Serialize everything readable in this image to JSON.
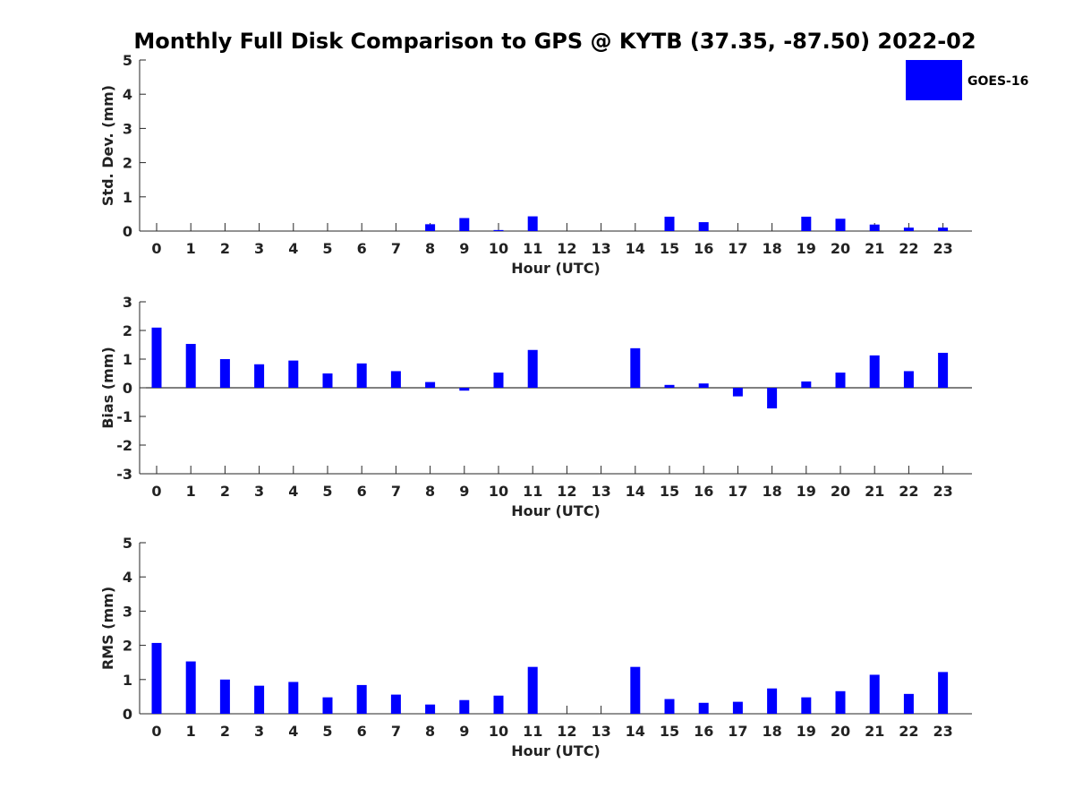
{
  "chart_data": {
    "type": "bar",
    "title": "Monthly Full Disk Comparison to GPS @ KYTB (37.35, -87.50) 2022-02",
    "categories": [
      "0",
      "1",
      "2",
      "3",
      "4",
      "5",
      "6",
      "7",
      "8",
      "9",
      "10",
      "11",
      "12",
      "13",
      "14",
      "15",
      "16",
      "17",
      "18",
      "19",
      "20",
      "21",
      "22",
      "23"
    ],
    "legend": {
      "label": "GOES-16",
      "placement": "top-right"
    },
    "series_color": "#0000ff",
    "panels": [
      {
        "id": "stddev",
        "ylabel": "Std. Dev. (mm)",
        "xlabel": "Hour (UTC)",
        "ylim": [
          0,
          5
        ],
        "yticks": [
          "0",
          "1",
          "2",
          "3",
          "4",
          "5"
        ],
        "values": [
          null,
          null,
          null,
          null,
          null,
          null,
          null,
          null,
          0.2,
          0.38,
          0.03,
          0.43,
          null,
          null,
          null,
          0.42,
          0.26,
          null,
          null,
          0.42,
          0.36,
          0.19,
          0.1,
          0.1
        ]
      },
      {
        "id": "bias",
        "ylabel": "Bias (mm)",
        "xlabel": "Hour (UTC)",
        "ylim": [
          -3,
          3
        ],
        "yticks": [
          "-3",
          "-2",
          "-1",
          "0",
          "1",
          "2",
          "3"
        ],
        "values": [
          2.1,
          1.53,
          1.0,
          0.82,
          0.95,
          0.5,
          0.85,
          0.58,
          0.2,
          -0.1,
          0.53,
          1.32,
          null,
          null,
          1.38,
          0.1,
          0.15,
          -0.3,
          -0.72,
          0.22,
          0.53,
          1.13,
          0.58,
          1.22
        ]
      },
      {
        "id": "rms",
        "ylabel": "RMS (mm)",
        "xlabel": "Hour (UTC)",
        "ylim": [
          0,
          5
        ],
        "yticks": [
          "0",
          "1",
          "2",
          "3",
          "4",
          "5"
        ],
        "values": [
          2.07,
          1.53,
          1.0,
          0.82,
          0.93,
          0.48,
          0.84,
          0.56,
          0.27,
          0.4,
          0.53,
          1.37,
          null,
          null,
          1.37,
          0.43,
          0.32,
          0.35,
          0.74,
          0.48,
          0.66,
          1.14,
          0.58,
          1.22
        ]
      }
    ]
  }
}
